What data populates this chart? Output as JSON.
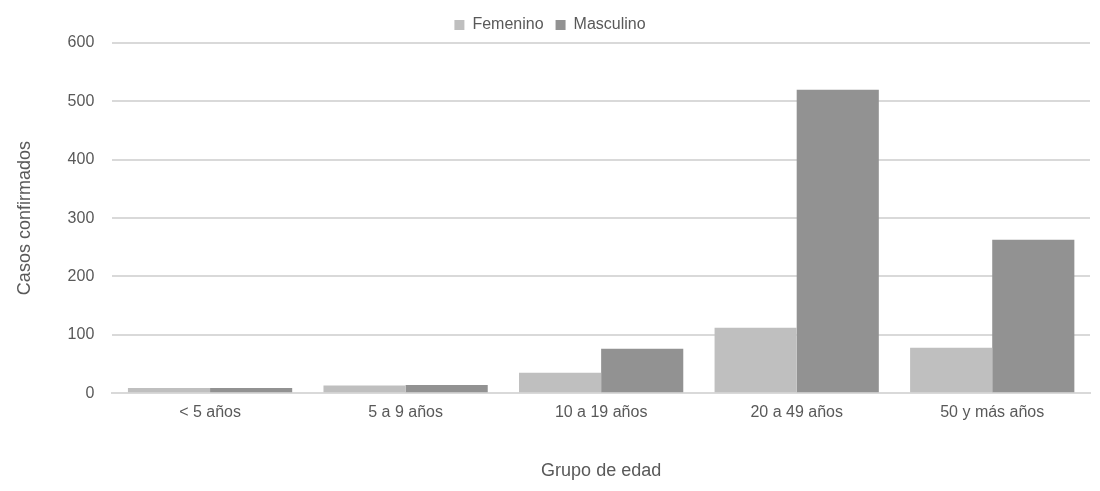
{
  "chart_data": {
    "type": "bar",
    "xlabel": "Grupo de edad",
    "ylabel": "Casos confirmados",
    "categories": [
      "< 5 años",
      "5 a 9 años",
      "10 a 19 años",
      "20 a 49 años",
      "50 y más años"
    ],
    "series": [
      {
        "name": "Femenino",
        "color": "#bfbfbf",
        "values": [
          9,
          13,
          35,
          112,
          78
        ]
      },
      {
        "name": "Masculino",
        "color": "#929292",
        "values": [
          9,
          14,
          76,
          520,
          263
        ]
      }
    ],
    "ylim": [
      0,
      600
    ],
    "yticks": [
      0,
      100,
      200,
      300,
      400,
      500,
      600
    ],
    "grid": "y",
    "legend": "top"
  }
}
